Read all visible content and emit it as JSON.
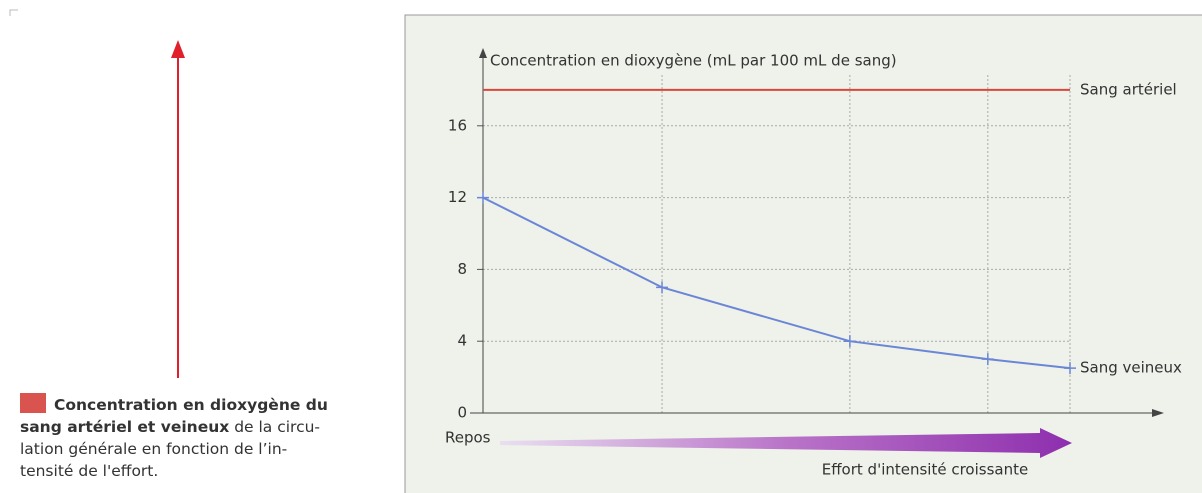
{
  "caption": {
    "lines": [
      {
        "bold": "Concentration en dioxygène du"
      },
      {
        "bold": "sang artériel et veineux",
        "normal": "de la circu-"
      },
      {
        "normal": "lation générale en fonction de l’in-"
      },
      {
        "normal": "tensité de l'effort."
      }
    ]
  },
  "chart_data": {
    "type": "line",
    "y_label": "Concentration en dioxygène (mL par 100 mL de sang)",
    "x_label": "Effort d'intensité croissante",
    "categories": [
      "Repos",
      null,
      null,
      null,
      null
    ],
    "series": [
      {
        "name": "Sang artériel",
        "color": "#d9463a",
        "values": [
          18,
          18,
          18,
          18,
          18
        ],
        "markers": false
      },
      {
        "name": "Sang veineux",
        "color": "#6b86d6",
        "values": [
          12,
          7,
          4,
          3,
          2.5
        ],
        "markers": true
      }
    ],
    "ylim": [
      0,
      20
    ],
    "yticks": [
      0,
      4,
      8,
      12,
      16
    ],
    "grid": true
  }
}
